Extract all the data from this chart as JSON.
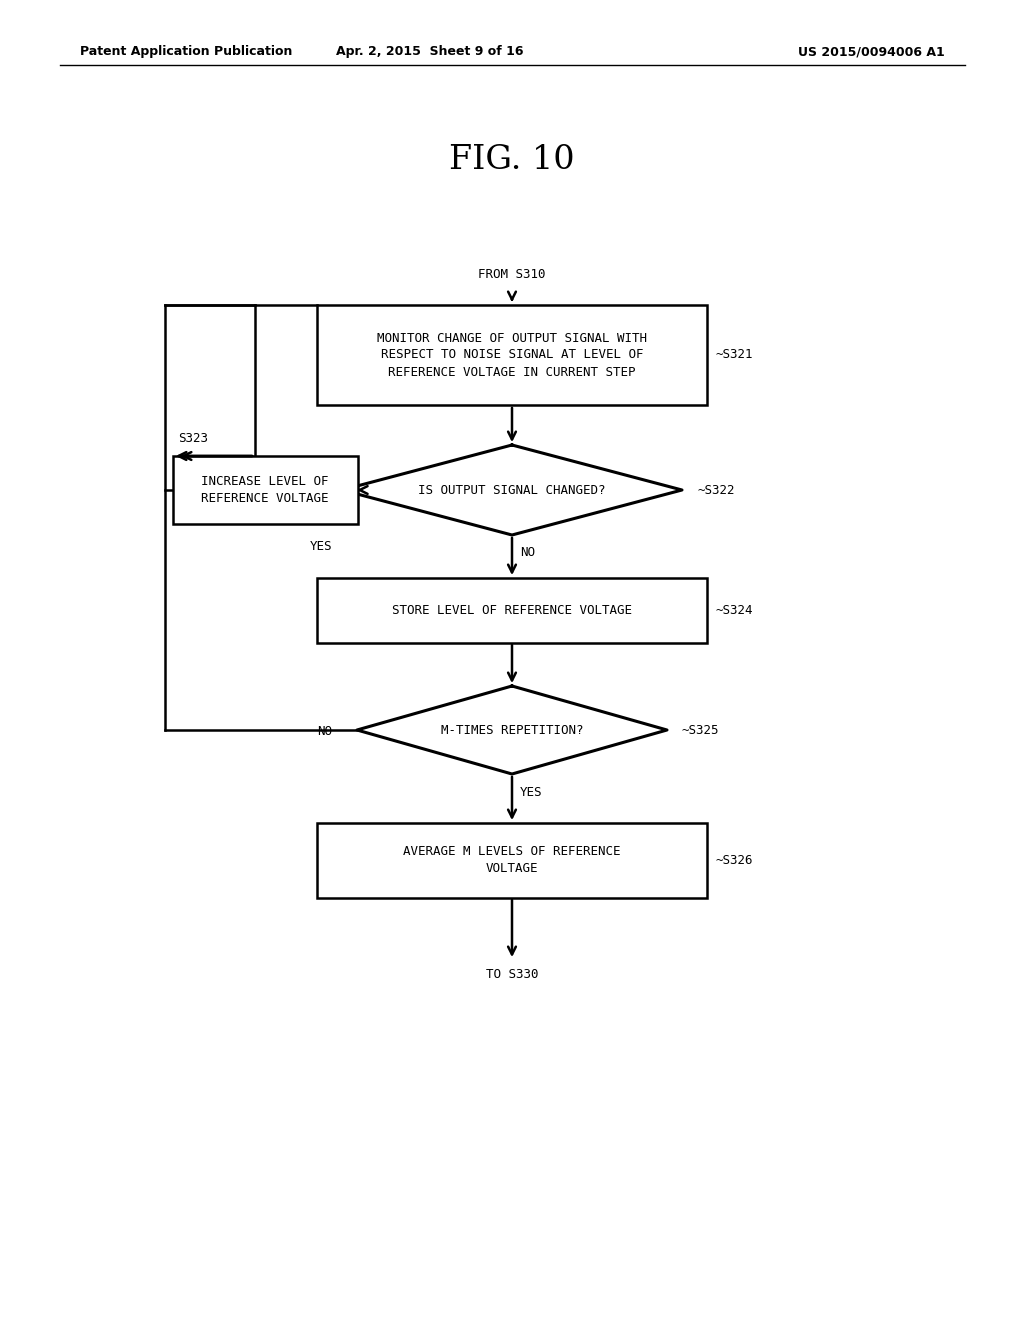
{
  "bg_color": "#ffffff",
  "title": "FIG. 10",
  "header_left": "Patent Application Publication",
  "header_mid": "Apr. 2, 2015  Sheet 9 of 16",
  "header_right": "US 2015/0094006 A1",
  "from_label": "FROM S310",
  "to_label": "TO S330",
  "s321_label": "MONITOR CHANGE OF OUTPUT SIGNAL WITH\nRESPECT TO NOISE SIGNAL AT LEVEL OF\nREFERENCE VOLTAGE IN CURRENT STEP",
  "s321_tag": "S321",
  "s322_label": "IS OUTPUT SIGNAL CHANGED?",
  "s322_tag": "S322",
  "s323_label": "INCREASE LEVEL OF\nREFERENCE VOLTAGE",
  "s323_tag": "S323",
  "s324_label": "STORE LEVEL OF REFERENCE VOLTAGE",
  "s324_tag": "S324",
  "s325_label": "M-TIMES REPETITION?",
  "s325_tag": "S325",
  "s326_label": "AVERAGE M LEVELS OF REFERENCE\nVOLTAGE",
  "s326_tag": "S326",
  "yes_label": "YES",
  "no_label": "NO"
}
